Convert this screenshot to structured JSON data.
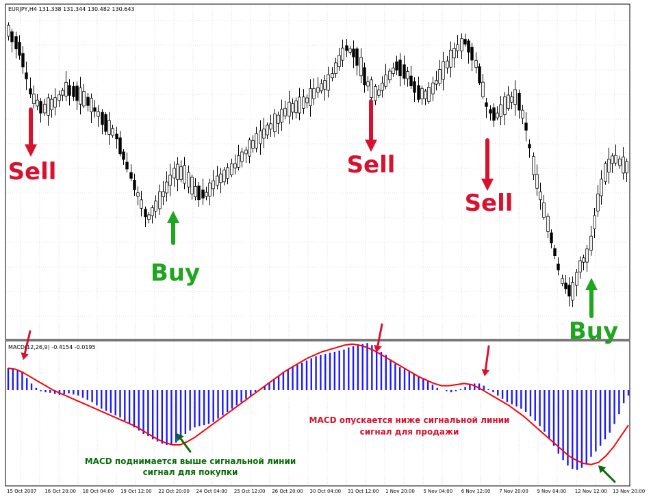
{
  "price_header": "EURJPY,H4  131.338 131.344 130.482 130.643",
  "macd_header": "MACD(12,26,9) -0.4154 -0.0195",
  "signals": {
    "sell_label": "Sell",
    "buy_label": "Buy"
  },
  "annotations": {
    "buy_line1": "MACD поднимается выше сигнальной линии",
    "buy_line2": "сигнал для покупки",
    "sell_line1": "MACD опускается ниже сигнальной линии",
    "sell_line2": "сигнал для продажи"
  },
  "colors": {
    "bull_body": "#ffffff",
    "bear_body": "#000000",
    "histogram": "#1a1aff",
    "signal_line": "#ff0000",
    "sell": "#d8122e",
    "buy": "#1fa61f",
    "buy_note": "#0b6b0b",
    "sell_note": "#d8122e",
    "grid": "#c8c8c8"
  },
  "chart_data": [
    {
      "type": "candlestick",
      "symbol": "EURJPY",
      "timeframe": "H4",
      "ohlc": [
        131.338,
        131.344,
        130.482,
        130.643
      ],
      "x_tick_labels": [
        "15 Oct 2007",
        "16 Oct 20:00",
        "18 Oct 04:00",
        "19 Oct 12:00",
        "22 Oct 20:00",
        "24 Oct 04:00",
        "25 Oct 12:00",
        "26 Oct 20:00",
        "30 Oct 04:00",
        "31 Oct 12:00",
        "1 Nov 20:00",
        "5 Nov 04:00",
        "6 Nov 12:00",
        "7 Nov 20:00",
        "9 Nov 04:00",
        "12 Nov 12:00",
        "13 Nov 20:00"
      ],
      "signals": [
        {
          "type": "sell",
          "x_label": "15 Oct 2007"
        },
        {
          "type": "buy",
          "x_label": "22 Oct 20:00"
        },
        {
          "type": "sell",
          "x_label": "31 Oct 12:00"
        },
        {
          "type": "sell",
          "x_label": "7 Nov 20:00"
        },
        {
          "type": "buy",
          "x_label": "13 Nov 20:00"
        }
      ]
    },
    {
      "type": "histogram+line",
      "indicator": "MACD",
      "params": [
        12,
        26,
        9
      ],
      "last_values": {
        "macd": -0.4154,
        "signal": -0.0195
      },
      "series": [
        {
          "kind": "bar",
          "values": [
            1.0,
            0.98,
            0.95,
            0.85,
            0.55,
            0.3,
            0.1,
            -0.05,
            -0.1,
            -0.12,
            -0.18,
            -0.22,
            -0.18,
            -0.15,
            -0.2,
            -0.25,
            -0.35,
            -0.45,
            -0.55,
            -0.7,
            -0.85,
            -0.95,
            -1.05,
            -1.15,
            -1.25,
            -1.4,
            -1.55,
            -1.7,
            -1.85,
            -2.0,
            -2.1,
            -2.25,
            -2.35,
            -2.45,
            -2.5,
            -2.5,
            -2.4,
            -2.2,
            -2.0,
            -1.85,
            -1.7,
            -1.65,
            -1.6,
            -1.55,
            -1.45,
            -1.3,
            -1.15,
            -1.0,
            -0.85,
            -0.7,
            -0.55,
            -0.4,
            -0.25,
            -0.1,
            0.05,
            0.2,
            0.35,
            0.5,
            0.65,
            0.8,
            0.95,
            1.05,
            1.15,
            1.25,
            1.35,
            1.45,
            1.55,
            1.6,
            1.65,
            1.7,
            1.75,
            1.8,
            1.85,
            1.95,
            2.0,
            2.05,
            2.1,
            2.15,
            2.05,
            1.9,
            1.75,
            1.6,
            1.4,
            1.2,
            1.05,
            0.95,
            0.85,
            0.75,
            0.65,
            0.55,
            0.4,
            0.25,
            0.1,
            0.0,
            -0.05,
            -0.1,
            -0.05,
            0.05,
            0.15,
            0.25,
            0.3,
            0.3,
            0.2,
            0.05,
            -0.1,
            -0.25,
            -0.4,
            -0.55,
            -0.65,
            -0.75,
            -0.85,
            -1.0,
            -1.2,
            -1.4,
            -1.65,
            -1.9,
            -2.2,
            -2.55,
            -2.9,
            -3.2,
            -3.45,
            -3.6,
            -3.65,
            -3.55,
            -3.35,
            -3.05,
            -2.8,
            -2.55,
            -2.25,
            -1.95,
            -1.55,
            -1.1,
            -0.6,
            -0.25
          ]
        },
        {
          "kind": "line",
          "values": [
            1.0,
            0.95,
            0.8,
            0.6,
            0.4,
            0.2,
            0.0,
            -0.15,
            -0.3,
            -0.45,
            -0.6,
            -0.75,
            -0.9,
            -1.05,
            -1.2,
            -1.35,
            -1.5,
            -1.65,
            -1.85,
            -2.05,
            -2.25,
            -2.4,
            -2.5,
            -2.5,
            -2.35,
            -2.15,
            -1.9,
            -1.65,
            -1.4,
            -1.15,
            -0.9,
            -0.65,
            -0.4,
            -0.15,
            0.1,
            0.35,
            0.6,
            0.85,
            1.05,
            1.25,
            1.45,
            1.6,
            1.75,
            1.85,
            1.95,
            2.05,
            2.1,
            2.05,
            1.95,
            1.8,
            1.6,
            1.4,
            1.2,
            1.0,
            0.8,
            0.6,
            0.45,
            0.3,
            0.2,
            0.2,
            0.25,
            0.3,
            0.25,
            0.1,
            -0.1,
            -0.3,
            -0.5,
            -0.7,
            -0.95,
            -1.2,
            -1.5,
            -1.8,
            -2.1,
            -2.4,
            -2.7,
            -3.0,
            -3.2,
            -3.35,
            -3.4,
            -3.3,
            -3.0,
            -2.6,
            -2.1,
            -1.6
          ]
        }
      ],
      "signals": [
        {
          "type": "sell",
          "x_label": "15 Oct 2007"
        },
        {
          "type": "buy",
          "x_label": "22 Oct 20:00"
        },
        {
          "type": "sell",
          "x_label": "31 Oct 12:00"
        },
        {
          "type": "sell",
          "x_label": "7 Nov 20:00"
        },
        {
          "type": "buy",
          "x_label": "13 Nov 20:00"
        }
      ]
    }
  ]
}
